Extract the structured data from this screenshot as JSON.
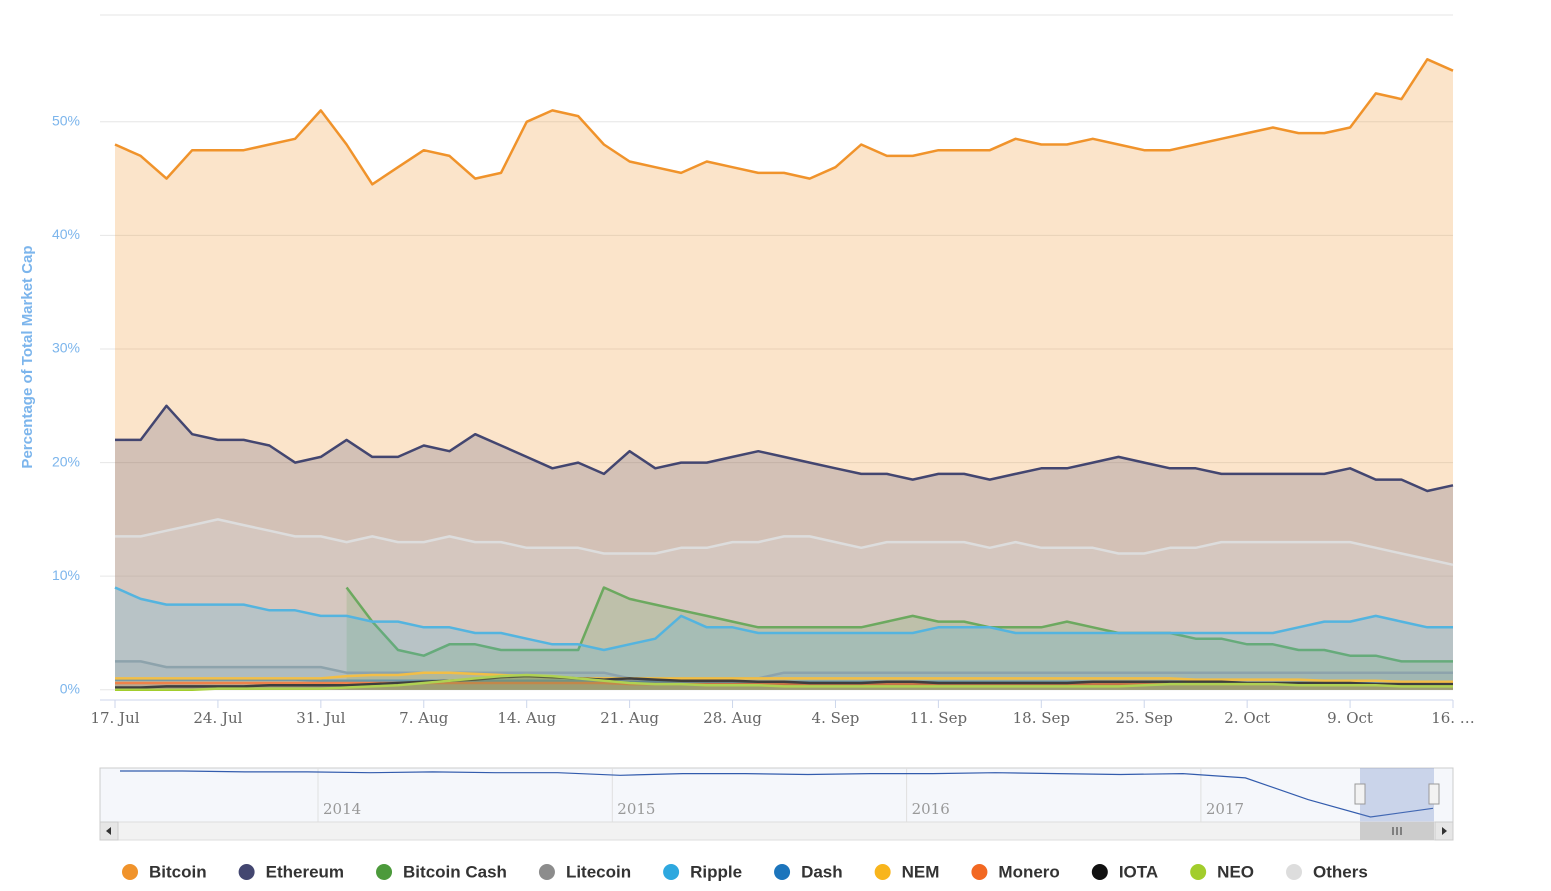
{
  "chart_data": {
    "type": "area",
    "y_axis_title": "Percentage of Total Market Cap",
    "ylim": [
      -0.9,
      59.4
    ],
    "yticks": [
      {
        "value": 0,
        "label": "0%"
      },
      {
        "value": 10,
        "label": "10%"
      },
      {
        "value": 20,
        "label": "20%"
      },
      {
        "value": 30,
        "label": "30%"
      },
      {
        "value": 40,
        "label": "40%"
      },
      {
        "value": 50,
        "label": "50%"
      }
    ],
    "grid": true,
    "categories": [
      "17. Jul",
      null,
      null,
      null,
      "24. Jul",
      null,
      null,
      null,
      "31. Jul",
      null,
      null,
      null,
      "7. Aug",
      null,
      null,
      null,
      "14. Aug",
      null,
      null,
      null,
      "21. Aug",
      null,
      null,
      null,
      "28. Aug",
      null,
      null,
      null,
      "4. Sep",
      null,
      null,
      null,
      "11. Sep",
      null,
      null,
      null,
      "18. Sep",
      null,
      null,
      null,
      "25. Sep",
      null,
      null,
      null,
      "2. Oct",
      null,
      null,
      null,
      "9. Oct",
      null,
      null,
      null,
      "16. …"
    ],
    "series": [
      {
        "name": "Bitcoin",
        "color": "#f0932b",
        "values": [
          48,
          47,
          45,
          47.5,
          47.5,
          47.5,
          48,
          48.5,
          51,
          48,
          44.5,
          46,
          47.5,
          47,
          45,
          45.5,
          50,
          51,
          50.5,
          48,
          46.5,
          46,
          45.5,
          46.5,
          46,
          45.5,
          45.5,
          45,
          46,
          48,
          47,
          47,
          47.5,
          47.5,
          47.5,
          48.5,
          48,
          48,
          48.5,
          48,
          47.5,
          47.5,
          48,
          48.5,
          49,
          49.5,
          49,
          49,
          49.5,
          52.5,
          52,
          55.5,
          54.5
        ]
      },
      {
        "name": "Ethereum",
        "color": "#434670",
        "values": [
          22,
          22,
          25,
          22.5,
          22,
          22,
          21.5,
          20,
          20.5,
          22,
          20.5,
          20.5,
          21.5,
          21,
          22.5,
          21.5,
          20.5,
          19.5,
          20,
          19,
          21,
          19.5,
          20,
          20,
          20.5,
          21,
          20.5,
          20,
          19.5,
          19,
          19,
          18.5,
          19,
          19,
          18.5,
          19,
          19.5,
          19.5,
          20,
          20.5,
          20,
          19.5,
          19.5,
          19,
          19,
          19,
          19,
          19,
          19.5,
          18.5,
          18.5,
          17.5,
          18
        ]
      },
      {
        "name": "Bitcoin Cash",
        "color": "#4c9a3b",
        "values": [
          null,
          null,
          null,
          null,
          null,
          null,
          null,
          null,
          null,
          9,
          6,
          3.5,
          3,
          4,
          4,
          3.5,
          3.5,
          3.5,
          3.5,
          9,
          8,
          7.5,
          7,
          6.5,
          6,
          5.5,
          5.5,
          5.5,
          5.5,
          5.5,
          6,
          6.5,
          6,
          6,
          5.5,
          5.5,
          5.5,
          6,
          5.5,
          5,
          5,
          5,
          4.5,
          4.5,
          4,
          4,
          3.5,
          3.5,
          3,
          3,
          2.5,
          2.5,
          2.5
        ]
      },
      {
        "name": "Litecoin",
        "color": "#8c8c8c",
        "values": [
          2.5,
          2.5,
          2,
          2,
          2,
          2,
          2,
          2,
          2,
          1.5,
          1.5,
          1.5,
          1.5,
          1.5,
          1.5,
          1.5,
          1.5,
          1.5,
          1.5,
          1.5,
          1,
          1,
          1,
          1,
          1,
          1,
          1.5,
          1.5,
          1.5,
          1.5,
          1.5,
          1.5,
          1.5,
          1.5,
          1.5,
          1.5,
          1.5,
          1.5,
          1.5,
          1.5,
          1.5,
          1.5,
          1.5,
          1.5,
          1.5,
          1.5,
          1.5,
          1.5,
          1.5,
          1.5,
          1.5,
          1.5,
          1.5
        ]
      },
      {
        "name": "Ripple",
        "color": "#2ea8df",
        "values": [
          9,
          8,
          7.5,
          7.5,
          7.5,
          7.5,
          7,
          7,
          6.5,
          6.5,
          6,
          6,
          5.5,
          5.5,
          5,
          5,
          4.5,
          4,
          4,
          3.5,
          4,
          4.5,
          6.5,
          5.5,
          5.5,
          5,
          5,
          5,
          5,
          5,
          5,
          5,
          5.5,
          5.5,
          5.5,
          5,
          5,
          5,
          5,
          5,
          5,
          5,
          5,
          5,
          5,
          5,
          5.5,
          6,
          6,
          6.5,
          6,
          5.5,
          5.5
        ]
      },
      {
        "name": "Dash",
        "color": "#1c75bc",
        "values": [
          0.9,
          0.9,
          0.9,
          0.9,
          0.9,
          0.9,
          0.9,
          0.9,
          0.8,
          0.8,
          0.8,
          0.8,
          0.8,
          0.8,
          0.8,
          0.8,
          0.8,
          0.8,
          0.8,
          0.8,
          0.7,
          0.7,
          0.7,
          0.7,
          0.7,
          0.7,
          0.7,
          0.7,
          0.7,
          0.7,
          0.7,
          0.7,
          0.7,
          0.7,
          0.7,
          0.7,
          0.7,
          0.7,
          0.7,
          0.7,
          0.7,
          0.7,
          0.7,
          0.7,
          0.6,
          0.6,
          0.6,
          0.6,
          0.6,
          0.6,
          0.6,
          0.6,
          0.6
        ]
      },
      {
        "name": "NEM",
        "color": "#f8b51c",
        "values": [
          1,
          1,
          1,
          1,
          1,
          1,
          1,
          1,
          1,
          1.2,
          1.3,
          1.3,
          1.5,
          1.5,
          1.4,
          1.3,
          1.2,
          1.1,
          1,
          1,
          1,
          1,
          1,
          1,
          1,
          1,
          1,
          1,
          1,
          1,
          1,
          1,
          1,
          1,
          1,
          1,
          1,
          1,
          1,
          1,
          1,
          1,
          0.9,
          0.9,
          0.9,
          0.9,
          0.9,
          0.8,
          0.8,
          0.8,
          0.7,
          0.7,
          0.7
        ]
      },
      {
        "name": "Monero",
        "color": "#f26822",
        "values": [
          0.6,
          0.6,
          0.6,
          0.6,
          0.6,
          0.6,
          0.6,
          0.6,
          0.6,
          0.6,
          0.6,
          0.6,
          0.6,
          0.6,
          0.6,
          0.6,
          0.6,
          0.6,
          0.6,
          0.6,
          0.5,
          0.5,
          0.5,
          0.5,
          0.5,
          0.5,
          0.5,
          0.5,
          0.5,
          0.5,
          0.5,
          0.5,
          0.5,
          0.5,
          0.5,
          0.5,
          0.5,
          0.5,
          0.5,
          0.5,
          0.5,
          0.5,
          0.5,
          0.5,
          0.5,
          0.5,
          0.5,
          0.5,
          0.5,
          0.5,
          0.5,
          0.5,
          0.5
        ]
      },
      {
        "name": "IOTA",
        "color": "#111111",
        "values": [
          0.2,
          0.2,
          0.3,
          0.3,
          0.3,
          0.3,
          0.4,
          0.4,
          0.4,
          0.4,
          0.5,
          0.6,
          0.7,
          0.8,
          0.9,
          1.1,
          1.2,
          1.1,
          1,
          0.9,
          1,
          0.9,
          0.8,
          0.8,
          0.8,
          0.7,
          0.7,
          0.6,
          0.6,
          0.6,
          0.7,
          0.7,
          0.6,
          0.6,
          0.6,
          0.6,
          0.6,
          0.6,
          0.7,
          0.7,
          0.7,
          0.7,
          0.7,
          0.7,
          0.6,
          0.6,
          0.6,
          0.6,
          0.6,
          0.5,
          0.5,
          0.5,
          0.5
        ]
      },
      {
        "name": "NEO",
        "color": "#a2cd2c",
        "values": [
          0,
          0,
          0,
          0,
          0.1,
          0.1,
          0.1,
          0.1,
          0.1,
          0.2,
          0.3,
          0.4,
          0.6,
          0.8,
          1,
          1.2,
          1.3,
          1.2,
          1,
          0.8,
          0.6,
          0.5,
          0.5,
          0.4,
          0.4,
          0.4,
          0.3,
          0.3,
          0.3,
          0.3,
          0.3,
          0.3,
          0.3,
          0.3,
          0.3,
          0.3,
          0.3,
          0.3,
          0.3,
          0.3,
          0.4,
          0.5,
          0.5,
          0.5,
          0.5,
          0.5,
          0.4,
          0.4,
          0.4,
          0.4,
          0.3,
          0.3,
          0.3
        ]
      },
      {
        "name": "Others",
        "color": "#dddddd",
        "values": [
          13.5,
          13.5,
          14,
          14.5,
          15,
          14.5,
          14,
          13.5,
          13.5,
          13,
          13.5,
          13,
          13,
          13.5,
          13,
          13,
          12.5,
          12.5,
          12.5,
          12,
          12,
          12,
          12.5,
          12.5,
          13,
          13,
          13.5,
          13.5,
          13,
          12.5,
          13,
          13,
          13,
          13,
          12.5,
          13,
          12.5,
          12.5,
          12.5,
          12,
          12,
          12.5,
          12.5,
          13,
          13,
          13,
          13,
          13,
          13,
          12.5,
          12,
          11.5,
          11
        ]
      }
    ],
    "navigator": {
      "year_labels": [
        "2014",
        "2015",
        "2016",
        "2017"
      ],
      "values": [
        95,
        95,
        94,
        94,
        93,
        94,
        93,
        93,
        90,
        92,
        92,
        91,
        92,
        92,
        93,
        92,
        91,
        92,
        87,
        62,
        42,
        52
      ]
    }
  }
}
